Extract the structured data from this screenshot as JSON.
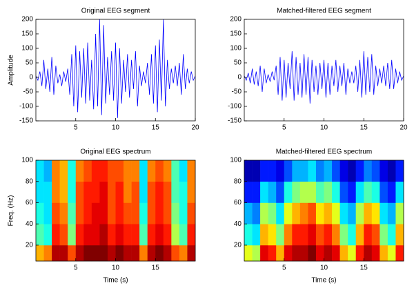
{
  "chart_data": [
    {
      "type": "line",
      "title": "Original EEG segment",
      "ylabel": "Amplitude",
      "color": "#0000ff",
      "x": [
        0,
        0.25,
        0.5,
        0.75,
        1,
        1.25,
        1.5,
        1.75,
        2,
        2.25,
        2.5,
        2.75,
        3,
        3.25,
        3.5,
        3.75,
        4,
        4.25,
        4.5,
        4.75,
        5,
        5.25,
        5.5,
        5.75,
        6,
        6.25,
        6.5,
        6.75,
        7,
        7.25,
        7.5,
        7.75,
        8,
        8.25,
        8.5,
        8.75,
        9,
        9.25,
        9.5,
        9.75,
        10,
        10.25,
        10.5,
        10.75,
        11,
        11.25,
        11.5,
        11.75,
        12,
        12.25,
        12.5,
        12.75,
        13,
        13.25,
        13.5,
        13.75,
        14,
        14.25,
        14.5,
        14.75,
        15,
        15.25,
        15.5,
        15.75,
        16,
        16.25,
        16.5,
        16.75,
        17,
        17.25,
        17.5,
        17.75,
        18,
        18.25,
        18.5,
        18.75,
        19,
        19.25,
        19.5,
        19.75,
        20
      ],
      "values": [
        5,
        -10,
        20,
        -30,
        60,
        -40,
        30,
        -50,
        70,
        -60,
        40,
        -20,
        10,
        -30,
        20,
        -15,
        30,
        -60,
        80,
        -100,
        110,
        -120,
        90,
        -70,
        100,
        -90,
        120,
        -80,
        60,
        -110,
        150,
        -100,
        200,
        -130,
        180,
        -90,
        70,
        -60,
        90,
        -80,
        120,
        -140,
        100,
        -90,
        60,
        -50,
        80,
        -70,
        60,
        -40,
        90,
        -100,
        40,
        -30,
        20,
        -20,
        50,
        -60,
        80,
        -90,
        110,
        -120,
        130,
        -80,
        200,
        -100,
        60,
        -40,
        30,
        -20,
        40,
        -30,
        50,
        -60,
        80,
        -40,
        30,
        -20,
        20,
        -10,
        5
      ],
      "xlim": [
        0,
        20
      ],
      "xticks": [
        5,
        10,
        15,
        20
      ],
      "ylim": [
        -150,
        200
      ],
      "yticks": [
        -150,
        -100,
        -50,
        0,
        50,
        100,
        150,
        200
      ]
    },
    {
      "type": "line",
      "title": "Matched-filtered EEG segment",
      "color": "#0000ff",
      "x": [
        0,
        0.25,
        0.5,
        0.75,
        1,
        1.25,
        1.5,
        1.75,
        2,
        2.25,
        2.5,
        2.75,
        3,
        3.25,
        3.5,
        3.75,
        4,
        4.25,
        4.5,
        4.75,
        5,
        5.25,
        5.5,
        5.75,
        6,
        6.25,
        6.5,
        6.75,
        7,
        7.25,
        7.5,
        7.75,
        8,
        8.25,
        8.5,
        8.75,
        9,
        9.25,
        9.5,
        9.75,
        10,
        10.25,
        10.5,
        10.75,
        11,
        11.25,
        11.5,
        11.75,
        12,
        12.25,
        12.5,
        12.75,
        13,
        13.25,
        13.5,
        13.75,
        14,
        14.25,
        14.5,
        14.75,
        15,
        15.25,
        15.5,
        15.75,
        16,
        16.25,
        16.5,
        16.75,
        17,
        17.25,
        17.5,
        17.75,
        18,
        18.25,
        18.5,
        18.75,
        19,
        19.25,
        19.5,
        19.75,
        20
      ],
      "values": [
        5,
        -10,
        15,
        -20,
        30,
        -25,
        20,
        -30,
        40,
        -50,
        30,
        -20,
        10,
        -15,
        20,
        -10,
        40,
        -60,
        70,
        -80,
        60,
        -70,
        50,
        -40,
        90,
        -80,
        70,
        -60,
        50,
        -70,
        80,
        -60,
        70,
        -90,
        60,
        -50,
        40,
        -60,
        50,
        -40,
        60,
        -70,
        50,
        -60,
        40,
        -30,
        60,
        -50,
        40,
        -30,
        50,
        -60,
        30,
        -20,
        20,
        -20,
        40,
        -50,
        60,
        -70,
        90,
        -60,
        70,
        -50,
        80,
        -60,
        40,
        -30,
        30,
        -20,
        40,
        -30,
        50,
        -40,
        60,
        -40,
        30,
        -20,
        20,
        -10,
        5
      ],
      "xlim": [
        0,
        20
      ],
      "xticks": [
        5,
        10,
        15,
        20
      ],
      "ylim": [
        -150,
        200
      ],
      "yticks": [
        -150,
        -100,
        -50,
        0,
        50,
        100,
        150,
        200
      ]
    },
    {
      "type": "heatmap",
      "title": "Original EEG spectrum",
      "xlabel": "Time (s)",
      "ylabel": "Freq. (Hz)",
      "colormap": "jet",
      "zlim": [
        0,
        1
      ],
      "x_edges": [
        0,
        1,
        2,
        3,
        4,
        5,
        6,
        7,
        8,
        9,
        10,
        11,
        12,
        13,
        14,
        15,
        16,
        17,
        18,
        19,
        20
      ],
      "y_edges": [
        5,
        20,
        40,
        60,
        80,
        100
      ],
      "z": [
        [
          0.7,
          0.75,
          0.95,
          0.95,
          0.8,
          0.95,
          1,
          1,
          1,
          0.95,
          1,
          0.95,
          0.95,
          0.75,
          0.95,
          1,
          0.95,
          0.8,
          0.75,
          0.95
        ],
        [
          0.45,
          0.4,
          0.85,
          0.8,
          0.5,
          0.85,
          0.9,
          0.9,
          0.95,
          0.85,
          0.9,
          0.85,
          0.85,
          0.45,
          0.85,
          0.9,
          0.85,
          0.55,
          0.45,
          0.85
        ],
        [
          0.4,
          0.35,
          0.8,
          0.75,
          0.45,
          0.8,
          0.85,
          0.9,
          0.9,
          0.8,
          0.85,
          0.8,
          0.8,
          0.4,
          0.8,
          0.85,
          0.8,
          0.5,
          0.4,
          0.8
        ],
        [
          0.35,
          0.35,
          0.75,
          0.7,
          0.4,
          0.8,
          0.85,
          0.85,
          0.9,
          0.8,
          0.85,
          0.75,
          0.8,
          0.35,
          0.8,
          0.85,
          0.8,
          0.45,
          0.4,
          0.75
        ],
        [
          0.35,
          0.3,
          0.75,
          0.7,
          0.4,
          0.75,
          0.8,
          0.85,
          0.85,
          0.8,
          0.8,
          0.75,
          0.75,
          0.35,
          0.75,
          0.8,
          0.75,
          0.45,
          0.35,
          0.75
        ]
      ],
      "xlim": [
        0,
        20
      ],
      "xticks": [
        5,
        10,
        15
      ],
      "ylim": [
        5,
        100
      ],
      "yticks": [
        20,
        40,
        60,
        80,
        100
      ]
    },
    {
      "type": "heatmap",
      "title": "Matched-filtered EEG spectrum",
      "xlabel": "Time (s)",
      "colormap": "jet",
      "zlim": [
        0,
        1
      ],
      "x_edges": [
        0,
        1,
        2,
        3,
        4,
        5,
        6,
        7,
        8,
        9,
        10,
        11,
        12,
        13,
        14,
        15,
        16,
        17,
        18,
        19,
        20
      ],
      "y_edges": [
        5,
        20,
        40,
        60,
        80,
        100
      ],
      "z": [
        [
          0.6,
          0.55,
          0.9,
          0.85,
          0.7,
          0.9,
          0.95,
          0.95,
          1,
          0.9,
          0.95,
          0.9,
          0.7,
          0.6,
          0.85,
          0.95,
          0.9,
          0.7,
          0.6,
          0.85
        ],
        [
          0.4,
          0.35,
          0.7,
          0.65,
          0.5,
          0.75,
          0.85,
          0.85,
          0.9,
          0.8,
          0.85,
          0.75,
          0.5,
          0.4,
          0.7,
          0.85,
          0.8,
          0.5,
          0.4,
          0.7
        ],
        [
          0.3,
          0.25,
          0.55,
          0.5,
          0.35,
          0.6,
          0.7,
          0.75,
          0.8,
          0.65,
          0.7,
          0.6,
          0.35,
          0.3,
          0.55,
          0.7,
          0.65,
          0.35,
          0.3,
          0.55
        ],
        [
          0.15,
          0.15,
          0.35,
          0.3,
          0.2,
          0.4,
          0.5,
          0.55,
          0.55,
          0.45,
          0.5,
          0.4,
          0.2,
          0.15,
          0.35,
          0.45,
          0.4,
          0.2,
          0.15,
          0.35
        ],
        [
          0.05,
          0.05,
          0.15,
          0.15,
          0.1,
          0.2,
          0.3,
          0.3,
          0.35,
          0.25,
          0.3,
          0.2,
          0.1,
          0.05,
          0.15,
          0.25,
          0.2,
          0.1,
          0.05,
          0.15
        ]
      ],
      "xlim": [
        0,
        20
      ],
      "xticks": [
        5,
        10,
        15
      ],
      "ylim": [
        5,
        100
      ],
      "yticks": [
        20,
        40,
        60,
        80,
        100
      ]
    }
  ]
}
